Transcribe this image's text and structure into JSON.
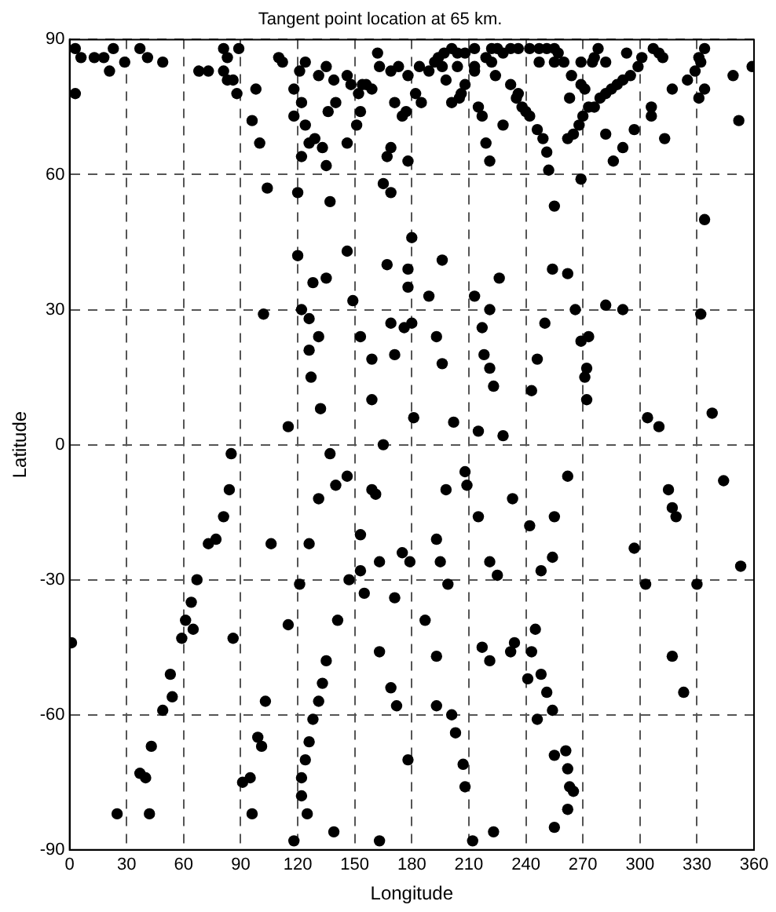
{
  "chart_data": {
    "type": "scatter",
    "title": "Tangent point location at 65 km.",
    "xlabel": "Longitude",
    "ylabel": "Latitude",
    "xlim": [
      0,
      360
    ],
    "xticks": [
      0,
      30,
      60,
      90,
      120,
      150,
      180,
      210,
      240,
      270,
      300,
      330,
      360
    ],
    "ylim": [
      -90,
      90
    ],
    "yticks": [
      -90,
      -60,
      -30,
      0,
      30,
      60,
      90
    ],
    "grid": true,
    "line_style": "dashed",
    "marker": "circle",
    "legend": false,
    "series": [
      {
        "color": "#000000",
        "x": [
          3,
          6,
          13,
          18,
          23,
          21,
          29,
          37,
          41,
          49,
          3,
          68,
          73,
          81,
          89,
          83,
          81,
          83,
          86,
          88,
          98,
          96,
          100,
          104,
          110,
          112,
          124,
          121,
          118,
          122,
          118,
          124,
          129,
          126,
          133,
          122,
          135,
          120,
          137,
          131,
          135,
          139,
          146,
          136,
          140,
          146,
          148,
          154,
          152,
          156,
          159,
          153,
          151,
          162,
          163,
          169,
          173,
          178,
          171,
          175,
          177,
          169,
          167,
          178,
          165,
          169,
          180,
          146,
          120,
          167,
          178,
          135,
          128,
          178,
          184,
          189,
          192,
          194,
          197,
          201,
          204,
          208,
          213,
          196,
          198,
          204,
          213,
          213,
          208,
          206,
          205,
          201,
          185,
          182,
          215,
          217,
          219,
          221,
          228,
          219,
          222,
          225,
          228,
          232,
          236,
          242,
          247,
          251,
          255,
          222,
          224,
          232,
          236,
          235,
          238,
          240,
          242,
          247,
          255,
          257,
          260,
          269,
          264,
          269,
          271,
          263,
          246,
          249,
          251,
          252,
          255,
          262,
          265,
          268,
          270,
          273,
          276,
          279,
          282,
          285,
          288,
          291,
          295,
          299,
          275,
          278,
          276,
          282,
          293,
          301,
          307,
          310,
          312,
          282,
          291,
          286,
          297,
          306,
          306,
          313,
          317,
          325,
          329,
          332,
          331,
          334,
          331,
          334,
          349,
          352,
          359,
          269,
          334,
          196,
          226,
          254,
          262,
          102,
          122,
          126,
          131,
          149,
          153,
          169,
          176,
          180,
          126,
          159,
          171,
          127,
          159,
          132,
          115,
          181,
          165,
          137,
          85,
          146,
          140,
          84,
          131,
          159,
          161,
          81,
          73,
          77,
          106,
          126,
          153,
          163,
          175,
          179,
          67,
          121,
          147,
          153,
          189,
          213,
          221,
          217,
          193,
          250,
          266,
          282,
          291,
          269,
          273,
          332,
          218,
          196,
          221,
          246,
          272,
          271,
          223,
          243,
          272,
          202,
          215,
          228,
          304,
          310,
          338,
          208,
          209,
          198,
          262,
          233,
          215,
          255,
          242,
          315,
          317,
          319,
          344,
          193,
          195,
          221,
          254,
          248,
          225,
          199,
          297,
          303,
          330,
          353,
          64,
          61,
          65,
          59,
          1,
          86,
          115,
          141,
          155,
          171,
          163,
          135,
          133,
          131,
          169,
          172,
          53,
          54,
          49,
          103,
          128,
          126,
          43,
          99,
          101,
          124,
          178,
          37,
          40,
          91,
          95,
          122,
          122,
          25,
          42,
          96,
          125,
          139,
          118,
          163,
          187,
          193,
          217,
          221,
          232,
          234,
          243,
          245,
          241,
          248,
          251,
          254,
          246,
          193,
          201,
          203,
          207,
          208,
          255,
          261,
          262,
          263,
          265,
          262,
          255,
          223,
          212,
          317,
          323
        ],
        "values": [
          88,
          86,
          86,
          86,
          88,
          83,
          85,
          88,
          86,
          85,
          78,
          83,
          83,
          88,
          88,
          86,
          83,
          81,
          81,
          78,
          79,
          72,
          67,
          57,
          86,
          85,
          85,
          83,
          79,
          76,
          73,
          71,
          68,
          67,
          66,
          64,
          62,
          56,
          54,
          82,
          84,
          81,
          82,
          74,
          76,
          67,
          80,
          80,
          78,
          80,
          79,
          74,
          71,
          87,
          84,
          83,
          84,
          82,
          76,
          73,
          74,
          66,
          64,
          63,
          58,
          56,
          46,
          43,
          42,
          40,
          39,
          37,
          36,
          35,
          84,
          83,
          85,
          86,
          87,
          88,
          87,
          87,
          88,
          84,
          81,
          84,
          84,
          83,
          80,
          78,
          77,
          76,
          76,
          78,
          75,
          73,
          67,
          63,
          71,
          86,
          88,
          88,
          87,
          88,
          88,
          88,
          88,
          88,
          88,
          85,
          82,
          80,
          78,
          77,
          75,
          74,
          73,
          85,
          85,
          87,
          85,
          85,
          82,
          80,
          79,
          77,
          70,
          68,
          65,
          61,
          53,
          68,
          69,
          71,
          73,
          75,
          75,
          77,
          78,
          79,
          80,
          81,
          82,
          84,
          85,
          88,
          86,
          85,
          87,
          86,
          88,
          87,
          86,
          69,
          66,
          63,
          70,
          75,
          73,
          68,
          79,
          81,
          83,
          85,
          86,
          88,
          77,
          79,
          82,
          72,
          84,
          59,
          50,
          41,
          37,
          39,
          38,
          29,
          30,
          28,
          24,
          32,
          24,
          27,
          26,
          27,
          21,
          19,
          20,
          15,
          10,
          8,
          4,
          6,
          0,
          -2,
          -2,
          -7,
          -9,
          -10,
          -12,
          -10,
          -11,
          -16,
          -22,
          -21,
          -22,
          -22,
          -20,
          -26,
          -24,
          -26,
          -30,
          -31,
          -30,
          -28,
          33,
          33,
          30,
          26,
          24,
          27,
          30,
          31,
          30,
          23,
          24,
          29,
          20,
          18,
          17,
          19,
          17,
          15,
          13,
          12,
          10,
          5,
          3,
          2,
          6,
          4,
          7,
          -6,
          -9,
          -10,
          -7,
          -12,
          -16,
          -16,
          -18,
          -10,
          -14,
          -16,
          -8,
          -21,
          -26,
          -26,
          -25,
          -28,
          -29,
          -31,
          -23,
          -31,
          -31,
          -27,
          -35,
          -39,
          -41,
          -43,
          -44,
          -43,
          -40,
          -39,
          -33,
          -34,
          -46,
          -48,
          -53,
          -57,
          -54,
          -58,
          -51,
          -56,
          -59,
          -57,
          -61,
          -66,
          -67,
          -65,
          -67,
          -70,
          -70,
          -73,
          -74,
          -75,
          -74,
          -74,
          -78,
          -82,
          -82,
          -82,
          -82,
          -86,
          -88,
          -88,
          -39,
          -47,
          -45,
          -48,
          -46,
          -44,
          -46,
          -41,
          -52,
          -51,
          -55,
          -59,
          -61,
          -58,
          -60,
          -64,
          -71,
          -76,
          -69,
          -68,
          -72,
          -76,
          -77,
          -81,
          -85,
          -86,
          -88,
          -47,
          -55
        ]
      }
    ]
  }
}
